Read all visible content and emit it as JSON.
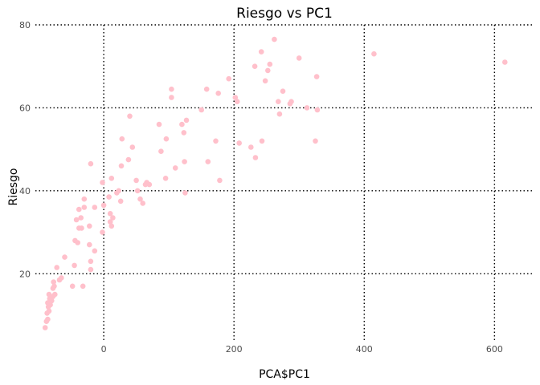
{
  "chart_data": {
    "type": "scatter",
    "title": "Riesgo vs PC1",
    "xlabel": "PCA$PC1",
    "ylabel": "Riesgo",
    "xlim": [
      -105,
      660
    ],
    "ylim": [
      4,
      80
    ],
    "xticks": [
      0,
      200,
      400,
      600
    ],
    "yticks": [
      20,
      40,
      60,
      80
    ],
    "grid": true,
    "point_color": "#ffc0cb",
    "points": [
      {
        "x": -90,
        "y": 7
      },
      {
        "x": -88,
        "y": 8.5
      },
      {
        "x": -86,
        "y": 9
      },
      {
        "x": -87,
        "y": 10.5
      },
      {
        "x": -84,
        "y": 11
      },
      {
        "x": -85,
        "y": 12
      },
      {
        "x": -82,
        "y": 12.5
      },
      {
        "x": -86,
        "y": 13
      },
      {
        "x": -83,
        "y": 14
      },
      {
        "x": -80,
        "y": 13.5
      },
      {
        "x": -78,
        "y": 14.5
      },
      {
        "x": -84,
        "y": 15
      },
      {
        "x": -75,
        "y": 15
      },
      {
        "x": -78,
        "y": 16.5
      },
      {
        "x": -76,
        "y": 17
      },
      {
        "x": -77,
        "y": 18
      },
      {
        "x": -72,
        "y": 21.5
      },
      {
        "x": -68,
        "y": 18.5
      },
      {
        "x": -65,
        "y": 19
      },
      {
        "x": -60,
        "y": 24
      },
      {
        "x": -48,
        "y": 17
      },
      {
        "x": -45,
        "y": 22
      },
      {
        "x": -44,
        "y": 28
      },
      {
        "x": -40,
        "y": 27.5
      },
      {
        "x": -42,
        "y": 33
      },
      {
        "x": -38,
        "y": 31
      },
      {
        "x": -35,
        "y": 33.5
      },
      {
        "x": -38,
        "y": 35.5
      },
      {
        "x": -34,
        "y": 31
      },
      {
        "x": -32,
        "y": 17
      },
      {
        "x": -30,
        "y": 36
      },
      {
        "x": -30,
        "y": 38
      },
      {
        "x": -22,
        "y": 31.5
      },
      {
        "x": -22,
        "y": 27
      },
      {
        "x": -20,
        "y": 23
      },
      {
        "x": -20,
        "y": 21
      },
      {
        "x": -20,
        "y": 46.5
      },
      {
        "x": -14,
        "y": 36
      },
      {
        "x": -14,
        "y": 25.5
      },
      {
        "x": -2,
        "y": 42
      },
      {
        "x": -2,
        "y": 30
      },
      {
        "x": 0,
        "y": 36.5
      },
      {
        "x": 8,
        "y": 38.5
      },
      {
        "x": 10,
        "y": 32.5
      },
      {
        "x": 10,
        "y": 34.5
      },
      {
        "x": 12,
        "y": 43
      },
      {
        "x": 12,
        "y": 31.5
      },
      {
        "x": 14,
        "y": 33.5
      },
      {
        "x": 20,
        "y": 39.5
      },
      {
        "x": 23,
        "y": 40
      },
      {
        "x": 26,
        "y": 37.5
      },
      {
        "x": 27,
        "y": 46
      },
      {
        "x": 28,
        "y": 52.5
      },
      {
        "x": 38,
        "y": 47.5
      },
      {
        "x": 40,
        "y": 58
      },
      {
        "x": 44,
        "y": 50.5
      },
      {
        "x": 50,
        "y": 42.5
      },
      {
        "x": 52,
        "y": 40
      },
      {
        "x": 56,
        "y": 38
      },
      {
        "x": 60,
        "y": 37
      },
      {
        "x": 64,
        "y": 41.5
      },
      {
        "x": 66,
        "y": 42
      },
      {
        "x": 70,
        "y": 41.5
      },
      {
        "x": 85,
        "y": 56
      },
      {
        "x": 88,
        "y": 49.5
      },
      {
        "x": 95,
        "y": 43
      },
      {
        "x": 96,
        "y": 52.5
      },
      {
        "x": 104,
        "y": 64.5
      },
      {
        "x": 104,
        "y": 62.5
      },
      {
        "x": 110,
        "y": 45.5
      },
      {
        "x": 120,
        "y": 56
      },
      {
        "x": 123,
        "y": 54
      },
      {
        "x": 124,
        "y": 47
      },
      {
        "x": 125,
        "y": 39.5
      },
      {
        "x": 127,
        "y": 57
      },
      {
        "x": 150,
        "y": 59.5
      },
      {
        "x": 158,
        "y": 64.5
      },
      {
        "x": 160,
        "y": 47
      },
      {
        "x": 172,
        "y": 52
      },
      {
        "x": 176,
        "y": 63.5
      },
      {
        "x": 178,
        "y": 42.5
      },
      {
        "x": 192,
        "y": 67
      },
      {
        "x": 202,
        "y": 62.5
      },
      {
        "x": 205,
        "y": 61.5
      },
      {
        "x": 208,
        "y": 51.5
      },
      {
        "x": 226,
        "y": 50.5
      },
      {
        "x": 232,
        "y": 70
      },
      {
        "x": 233,
        "y": 48
      },
      {
        "x": 242,
        "y": 73.5
      },
      {
        "x": 243,
        "y": 52
      },
      {
        "x": 248,
        "y": 66.5
      },
      {
        "x": 252,
        "y": 69
      },
      {
        "x": 255,
        "y": 70.5
      },
      {
        "x": 262,
        "y": 76.5
      },
      {
        "x": 268,
        "y": 61.5
      },
      {
        "x": 270,
        "y": 58.5
      },
      {
        "x": 275,
        "y": 64
      },
      {
        "x": 286,
        "y": 61
      },
      {
        "x": 288,
        "y": 61.5
      },
      {
        "x": 300,
        "y": 72
      },
      {
        "x": 312,
        "y": 60
      },
      {
        "x": 325,
        "y": 52
      },
      {
        "x": 327,
        "y": 67.5
      },
      {
        "x": 328,
        "y": 59.5
      },
      {
        "x": 415,
        "y": 73
      },
      {
        "x": 616,
        "y": 71
      }
    ]
  }
}
